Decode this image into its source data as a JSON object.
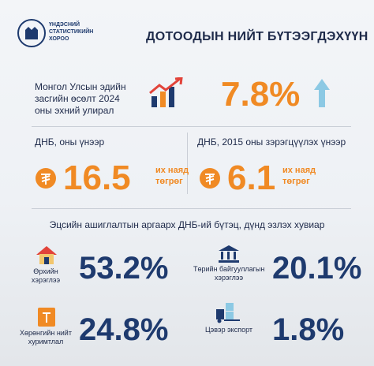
{
  "header": {
    "org": [
      "ҮНДЭСНИЙ",
      "СТАТИСТИКИЙН",
      "ХОРОО"
    ],
    "title": "ДОТООДЫН НИЙТ БҮТЭЭГДЭХҮҮН"
  },
  "growth": {
    "label": [
      "Монгол Улсын эдийн",
      "засгийн өсөлт 2024",
      "оны эхний улирал"
    ],
    "value": "7.8%"
  },
  "gdp_current": {
    "label": "ДНБ, оны үнээр",
    "value": "16.5",
    "unit": [
      "их наяд",
      "төгрөг"
    ]
  },
  "gdp_constant": {
    "label": "ДНБ, 2015 оны зэрэгцүүлэх үнээр",
    "value": "6.1",
    "unit": [
      "их наяд",
      "төгрөг"
    ]
  },
  "structure": {
    "title": "Эцсийн ашиглалтын аргаарх ДНБ-ий бүтэц, дүнд эзлэх хувиар",
    "items": [
      {
        "label": [
          "Өрхийн",
          "хэрэглээ"
        ],
        "value": "53.2%"
      },
      {
        "label": [
          "Төрийн байгууллагын",
          "хэрэглээ"
        ],
        "value": "20.1%"
      },
      {
        "label": [
          "Хөрөнгийн нийт",
          "хуримтлал"
        ],
        "value": "24.8%"
      },
      {
        "label": [
          "Цэвэр экспорт"
        ],
        "value": "1.8%"
      }
    ]
  }
}
